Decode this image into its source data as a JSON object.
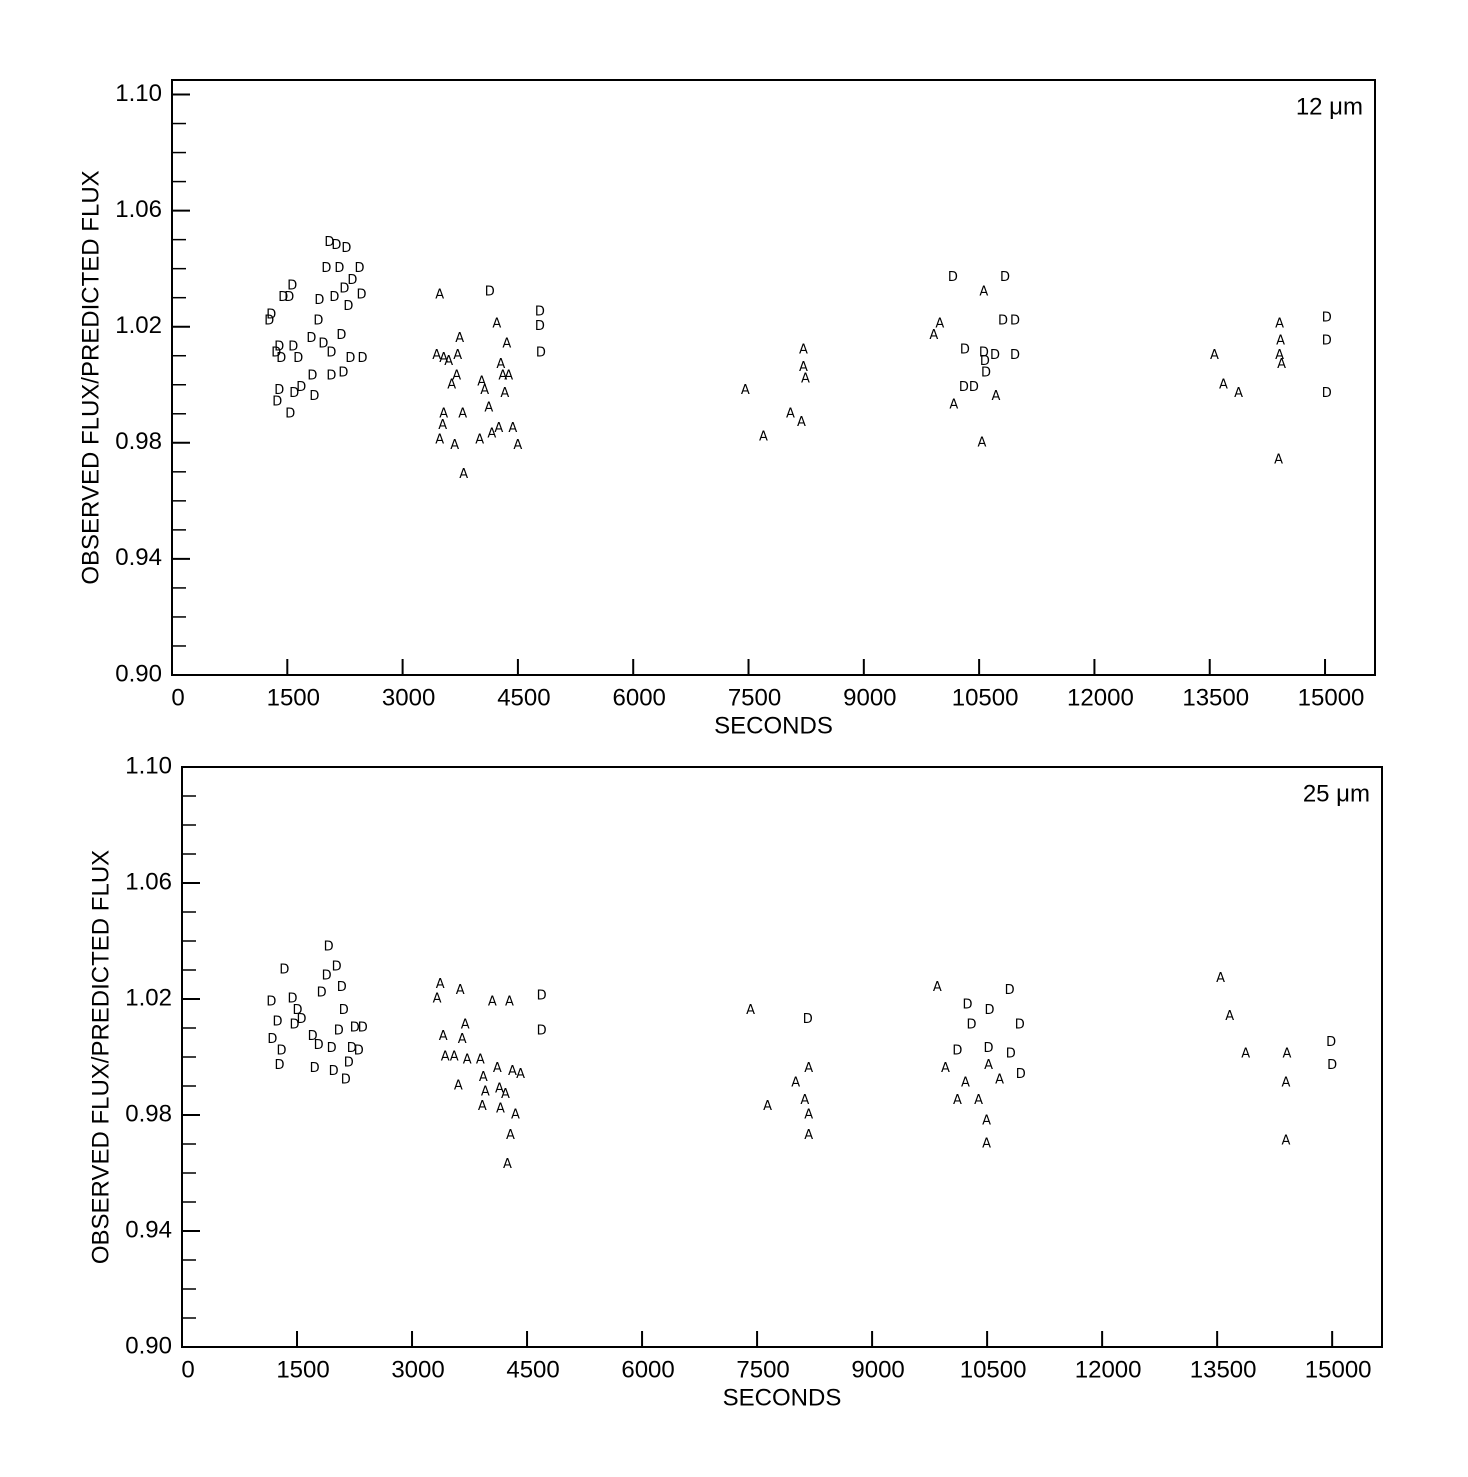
{
  "chart_data": [
    {
      "type": "scatter",
      "annotation": "12 μm",
      "xlabel": "SECONDS",
      "ylabel": "OBSERVED FLUX/PREDICTED FLUX",
      "xlim": [
        0,
        15650
      ],
      "ylim": [
        0.9,
        1.105
      ],
      "xticks": [
        0,
        1500,
        3000,
        4500,
        6000,
        7500,
        9000,
        10500,
        12000,
        13500,
        15000
      ],
      "yticks": [
        {
          "value": 0.9,
          "label": "0.90"
        },
        0.94,
        0.98,
        {
          "value": 1.02,
          "label": "1.02"
        },
        1.06,
        {
          "value": 1.1,
          "label": "1.10"
        }
      ],
      "yminorticks": [
        0.91,
        0.92,
        0.93,
        0.95,
        0.96,
        0.97,
        0.99,
        1.0,
        1.01,
        1.03,
        1.04,
        1.05,
        1.07,
        1.08,
        1.09
      ],
      "series": [
        {
          "marker": "D",
          "color": "#000000",
          "x": [
            1265,
            1291,
            1356,
            1395,
            1369,
            1395,
            1421,
            1447,
            1526,
            1565,
            1539,
            1578,
            1591,
            1643,
            1682,
            1826,
            1813,
            1852,
            1904,
            1917,
            1969,
            2008,
            2047,
            2073,
            2073,
            2112,
            2139,
            2178,
            2204,
            2230,
            2243,
            2269,
            2295,
            2321,
            2347,
            2439,
            2465,
            2478,
            4134,
            4786,
            4786,
            4799,
            10158,
            10836,
            10810,
            10967,
            10967,
            10706,
            10575,
            10589,
            10562,
            10315,
            10302,
            10432,
            15022,
            15022,
            15022
          ],
          "values": [
            1.022,
            1.024,
            1.011,
            1.013,
            0.994,
            0.998,
            1.009,
            1.03,
            1.03,
            1.034,
            0.99,
            1.013,
            0.997,
            1.009,
            0.999,
            1.003,
            1.016,
            0.996,
            1.022,
            1.029,
            1.014,
            1.04,
            1.049,
            1.011,
            1.003,
            1.03,
            1.048,
            1.04,
            1.017,
            1.004,
            1.033,
            1.047,
            1.027,
            1.009,
            1.036,
            1.04,
            1.031,
            1.009,
            1.032,
            1.025,
            1.02,
            1.011,
            1.037,
            1.037,
            1.022,
            1.022,
            1.01,
            1.01,
            1.008,
            1.004,
            1.011,
            1.012,
            0.999,
            0.999,
            1.023,
            1.015,
            0.997
          ]
        },
        {
          "marker": "A",
          "color": "#000000",
          "x": [
            3482,
            3443,
            3534,
            3599,
            3534,
            3482,
            3521,
            3677,
            3638,
            3703,
            3742,
            3716,
            3795,
            3782,
            4003,
            4029,
            4068,
            4121,
            4160,
            4225,
            4251,
            4277,
            4303,
            4330,
            4356,
            4381,
            4434,
            4499,
            7459,
            7694,
            8046,
            8189,
            8215,
            8215,
            8241,
            9910,
            9989,
            10171,
            10536,
            10562,
            10719,
            13562,
            13679,
            13875,
            14396,
            14409,
            14422,
            14409,
            14435
          ],
          "values": [
            1.031,
            1.01,
            1.009,
            1.008,
            0.99,
            0.981,
            0.986,
            0.979,
            1.0,
            1.003,
            1.016,
            1.01,
            0.969,
            0.99,
            0.981,
            1.001,
            0.998,
            0.992,
            0.983,
            1.021,
            0.985,
            1.007,
            1.003,
            0.997,
            1.014,
            1.003,
            0.985,
            0.979,
            0.998,
            0.982,
            0.99,
            0.987,
            1.012,
            1.006,
            1.002,
            1.017,
            1.021,
            0.993,
            0.98,
            1.032,
            0.996,
            1.01,
            1.0,
            0.997,
            0.974,
            1.021,
            1.015,
            1.01,
            1.007
          ]
        }
      ]
    },
    {
      "type": "scatter",
      "annotation": "25 μm",
      "xlabel": "SECONDS",
      "ylabel": "OBSERVED FLUX/PREDICTED FLUX",
      "xlim": [
        0,
        15650
      ],
      "ylim": [
        0.9,
        1.1
      ],
      "xticks": [
        0,
        1500,
        3000,
        4500,
        6000,
        7500,
        9000,
        10500,
        12000,
        13500,
        15000
      ],
      "yticks": [
        {
          "value": 0.9,
          "label": "0.90"
        },
        0.94,
        0.98,
        {
          "value": 1.02,
          "label": "1.02"
        },
        1.06,
        {
          "value": 1.1,
          "label": "1.10"
        }
      ],
      "yminorticks": [
        0.91,
        0.92,
        0.93,
        0.95,
        0.96,
        0.97,
        0.99,
        1.0,
        1.01,
        1.03,
        1.04,
        1.05,
        1.07,
        1.08,
        1.09
      ],
      "series": [
        {
          "marker": "D",
          "color": "#000000",
          "x": [
            1166,
            1179,
            1245,
            1271,
            1297,
            1336,
            1441,
            1467,
            1507,
            1559,
            1703,
            1729,
            1782,
            1821,
            1886,
            1913,
            1952,
            1978,
            2017,
            2044,
            2083,
            2109,
            2135,
            2175,
            2214,
            2253,
            2306,
            2358,
            4690,
            4690,
            8161,
            10113,
            10244,
            10297,
            10532,
            10519,
            10794,
            10925,
            10939,
            10808,
            14986,
            14999
          ],
          "values": [
            1.019,
            1.006,
            1.012,
            0.997,
            1.002,
            1.03,
            1.02,
            1.011,
            1.016,
            1.013,
            1.007,
            0.996,
            1.004,
            1.022,
            1.028,
            1.038,
            1.003,
            0.995,
            1.031,
            1.009,
            1.024,
            1.016,
            0.992,
            0.998,
            1.003,
            1.01,
            1.002,
            1.01,
            1.021,
            1.009,
            1.013,
            1.002,
            1.018,
            1.011,
            1.016,
            1.003,
            1.023,
            1.011,
            0.994,
            1.001,
            1.005,
            0.997
          ]
        },
        {
          "marker": "A",
          "color": "#000000",
          "x": [
            3367,
            3327,
            3406,
            3432,
            3550,
            3603,
            3629,
            3655,
            3694,
            3720,
            3891,
            3930,
            3956,
            3917,
            4048,
            4113,
            4140,
            4153,
            4218,
            4244,
            4271,
            4284,
            4310,
            4349,
            4415,
            7415,
            7637,
            8004,
            8122,
            8174,
            8174,
            8174,
            9851,
            9956,
            10113,
            10218,
            10388,
            10493,
            10493,
            10519,
            10663,
            13545,
            13663,
            13873,
            14397,
            14397,
            14410
          ],
          "values": [
            1.025,
            1.02,
            1.007,
            1.0,
            1.0,
            0.99,
            1.023,
            1.006,
            1.011,
            0.999,
            0.999,
            0.993,
            0.988,
            0.983,
            1.019,
            0.996,
            0.989,
            0.982,
            0.987,
            0.963,
            1.019,
            0.973,
            0.995,
            0.98,
            0.994,
            1.016,
            0.983,
            0.991,
            0.985,
            0.996,
            0.98,
            0.973,
            1.024,
            0.996,
            0.985,
            0.991,
            0.985,
            0.978,
            0.97,
            0.997,
            0.992,
            1.027,
            1.014,
            1.001,
            0.971,
            0.991,
            1.001
          ]
        }
      ]
    }
  ]
}
